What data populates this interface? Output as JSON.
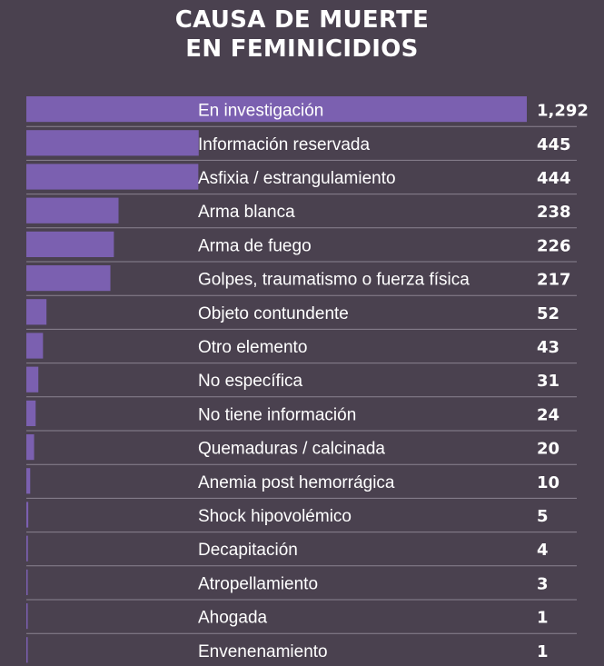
{
  "chart_data": {
    "type": "bar",
    "orientation": "horizontal",
    "title_line1": "CAUSA DE MUERTE",
    "title_line2": "EN FEMINICIDIOS",
    "xlabel": "",
    "ylabel": "",
    "grid": false,
    "colors": {
      "background": "#4a414f",
      "bar": "#7b60b0",
      "divider": "#8a8290",
      "text": "#ffffff"
    },
    "categories": [
      "En investigación",
      "Información reservada",
      "Asfixia / estrangulamiento",
      "Arma blanca",
      "Arma de fuego",
      "Golpes, traumatismo o fuerza física",
      "Objeto contundente",
      "Otro elemento",
      "No específica",
      "No tiene información",
      "Quemaduras / calcinada",
      "Anemia post hemorrágica",
      "Shock hipovolémico",
      "Decapitación",
      "Atropellamiento",
      "Ahogada",
      "Envenenamiento"
    ],
    "values": [
      1292,
      445,
      444,
      238,
      226,
      217,
      52,
      43,
      31,
      24,
      20,
      10,
      5,
      4,
      3,
      1,
      1
    ],
    "value_labels": [
      "1,292",
      "445",
      "444",
      "238",
      "226",
      "217",
      "52",
      "43",
      "31",
      "24",
      "20",
      "10",
      "5",
      "4",
      "3",
      "1",
      "1"
    ]
  }
}
